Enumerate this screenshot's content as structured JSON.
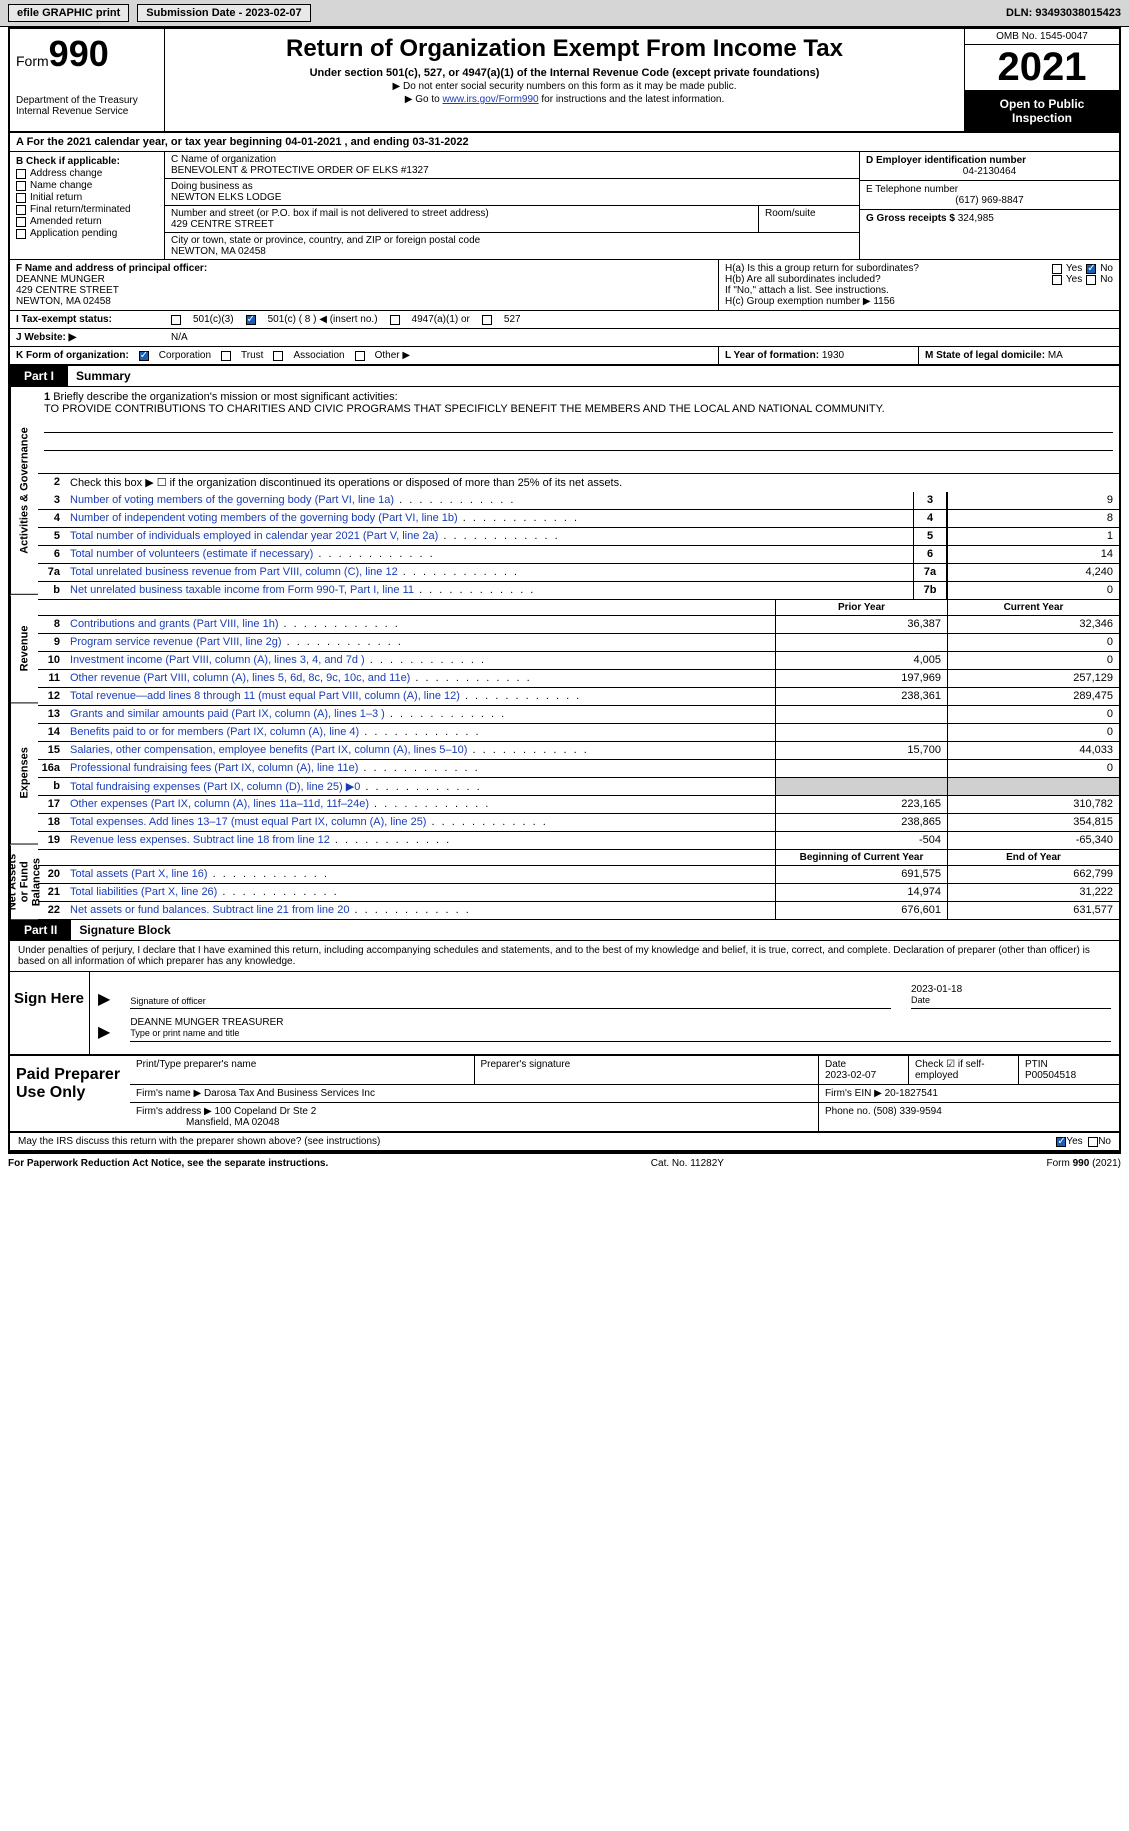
{
  "topbar": {
    "efile_label": "efile GRAPHIC print",
    "submission_date_label": "Submission Date - 2023-02-07",
    "dln_label": "DLN: 93493038015423"
  },
  "header": {
    "form_label": "Form",
    "form_number": "990",
    "dept": "Department of the Treasury\nInternal Revenue Service",
    "title": "Return of Organization Exempt From Income Tax",
    "subtitle1": "Under section 501(c), 527, or 4947(a)(1) of the Internal Revenue Code (except private foundations)",
    "subtitle2a": "▶ Do not enter social security numbers on this form as it may be made public.",
    "subtitle2b": "▶ Go to ",
    "irs_link": "www.irs.gov/Form990",
    "subtitle2c": " for instructions and the latest information.",
    "omb": "OMB No. 1545-0047",
    "tax_year": "2021",
    "open_public": "Open to Public Inspection"
  },
  "lineA": "A For the 2021 calendar year, or tax year beginning 04-01-2021   , and ending 03-31-2022",
  "blockB": {
    "label": "B Check if applicable:",
    "items": [
      "Address change",
      "Name change",
      "Initial return",
      "Final return/terminated",
      "Amended return",
      "Application pending"
    ]
  },
  "blockC": {
    "name_label": "C Name of organization",
    "org_name": "BENEVOLENT & PROTECTIVE ORDER OF ELKS #1327",
    "dba_label": "Doing business as",
    "dba_value": "NEWTON ELKS LODGE",
    "street_label": "Number and street (or P.O. box if mail is not delivered to street address)",
    "street_value": "429 CENTRE STREET",
    "room_label": "Room/suite",
    "city_label": "City or town, state or province, country, and ZIP or foreign postal code",
    "city_value": "NEWTON, MA  02458"
  },
  "blockD": {
    "ein_label": "D Employer identification number",
    "ein_value": "04-2130464",
    "phone_label": "E Telephone number",
    "phone_value": "(617) 969-8847",
    "gross_label": "G Gross receipts $",
    "gross_value": "324,985"
  },
  "blockF": {
    "label": "F Name and address of principal officer:",
    "name": "DEANNE MUNGER",
    "addr1": "429 CENTRE STREET",
    "addr2": "NEWTON, MA  02458"
  },
  "blockH": {
    "a_label": "H(a)  Is this a group return for subordinates?",
    "b_label": "H(b)  Are all subordinates included?",
    "b_note": "If \"No,\" attach a list. See instructions.",
    "c_label": "H(c)  Group exemption number ▶",
    "c_value": "1156",
    "yes": "Yes",
    "no": "No"
  },
  "lineI": {
    "label": "I   Tax-exempt status:",
    "opt1": "501(c)(3)",
    "opt2": "501(c) ( 8 ) ◀ (insert no.)",
    "opt3": "4947(a)(1) or",
    "opt4": "527"
  },
  "lineJ": {
    "label": "J   Website: ▶",
    "value": "N/A"
  },
  "lineK": {
    "label": "K Form of organization:",
    "corp": "Corporation",
    "trust": "Trust",
    "assoc": "Association",
    "other": "Other ▶"
  },
  "lineL": {
    "label": "L Year of formation:",
    "value": "1930"
  },
  "lineM": {
    "label": "M State of legal domicile:",
    "value": "MA"
  },
  "part1": {
    "part_label": "Part I",
    "title": "Summary",
    "line1_label": "1",
    "line1_desc": "Briefly describe the organization's mission or most significant activities:",
    "line1_text": "TO PROVIDE CONTRIBUTIONS TO CHARITIES AND CIVIC PROGRAMS THAT SPECIFICLY BENEFIT THE MEMBERS AND THE LOCAL AND NATIONAL COMMUNITY.",
    "line2_desc": "Check this box ▶ ☐  if the organization discontinued its operations or disposed of more than 25% of its net assets.",
    "vert_activities": "Activities & Governance",
    "vert_revenue": "Revenue",
    "vert_expenses": "Expenses",
    "vert_netassets": "Net Assets or Fund Balances",
    "hdr_prior": "Prior Year",
    "hdr_current": "Current Year",
    "hdr_begin": "Beginning of Current Year",
    "hdr_end": "End of Year",
    "lines_gov": [
      {
        "n": "3",
        "d": "Number of voting members of the governing body (Part VI, line 1a)",
        "box": "3",
        "v": "9"
      },
      {
        "n": "4",
        "d": "Number of independent voting members of the governing body (Part VI, line 1b)",
        "box": "4",
        "v": "8"
      },
      {
        "n": "5",
        "d": "Total number of individuals employed in calendar year 2021 (Part V, line 2a)",
        "box": "5",
        "v": "1"
      },
      {
        "n": "6",
        "d": "Total number of volunteers (estimate if necessary)",
        "box": "6",
        "v": "14"
      },
      {
        "n": "7a",
        "d": "Total unrelated business revenue from Part VIII, column (C), line 12",
        "box": "7a",
        "v": "4,240"
      },
      {
        "n": "b",
        "d": "Net unrelated business taxable income from Form 990-T, Part I, line 11",
        "box": "7b",
        "v": "0"
      }
    ],
    "lines_rev": [
      {
        "n": "8",
        "d": "Contributions and grants (Part VIII, line 1h)",
        "p": "36,387",
        "c": "32,346"
      },
      {
        "n": "9",
        "d": "Program service revenue (Part VIII, line 2g)",
        "p": "",
        "c": "0"
      },
      {
        "n": "10",
        "d": "Investment income (Part VIII, column (A), lines 3, 4, and 7d )",
        "p": "4,005",
        "c": "0"
      },
      {
        "n": "11",
        "d": "Other revenue (Part VIII, column (A), lines 5, 6d, 8c, 9c, 10c, and 11e)",
        "p": "197,969",
        "c": "257,129"
      },
      {
        "n": "12",
        "d": "Total revenue—add lines 8 through 11 (must equal Part VIII, column (A), line 12)",
        "p": "238,361",
        "c": "289,475"
      }
    ],
    "lines_exp": [
      {
        "n": "13",
        "d": "Grants and similar amounts paid (Part IX, column (A), lines 1–3 )",
        "p": "",
        "c": "0"
      },
      {
        "n": "14",
        "d": "Benefits paid to or for members (Part IX, column (A), line 4)",
        "p": "",
        "c": "0"
      },
      {
        "n": "15",
        "d": "Salaries, other compensation, employee benefits (Part IX, column (A), lines 5–10)",
        "p": "15,700",
        "c": "44,033"
      },
      {
        "n": "16a",
        "d": "Professional fundraising fees (Part IX, column (A), line 11e)",
        "p": "",
        "c": "0"
      },
      {
        "n": "b",
        "d": "Total fundraising expenses (Part IX, column (D), line 25) ▶0",
        "p": "GRAY",
        "c": "GRAY"
      },
      {
        "n": "17",
        "d": "Other expenses (Part IX, column (A), lines 11a–11d, 11f–24e)",
        "p": "223,165",
        "c": "310,782"
      },
      {
        "n": "18",
        "d": "Total expenses. Add lines 13–17 (must equal Part IX, column (A), line 25)",
        "p": "238,865",
        "c": "354,815"
      },
      {
        "n": "19",
        "d": "Revenue less expenses. Subtract line 18 from line 12",
        "p": "-504",
        "c": "-65,340"
      }
    ],
    "lines_net": [
      {
        "n": "20",
        "d": "Total assets (Part X, line 16)",
        "p": "691,575",
        "c": "662,799"
      },
      {
        "n": "21",
        "d": "Total liabilities (Part X, line 26)",
        "p": "14,974",
        "c": "31,222"
      },
      {
        "n": "22",
        "d": "Net assets or fund balances. Subtract line 21 from line 20",
        "p": "676,601",
        "c": "631,577"
      }
    ]
  },
  "part2": {
    "part_label": "Part II",
    "title": "Signature Block",
    "declaration": "Under penalties of perjury, I declare that I have examined this return, including accompanying schedules and statements, and to the best of my knowledge and belief, it is true, correct, and complete. Declaration of preparer (other than officer) is based on all information of which preparer has any knowledge.",
    "sign_here": "Sign Here",
    "sig_officer": "Signature of officer",
    "sig_date": "2023-01-18",
    "date_label": "Date",
    "name_title": "DEANNE MUNGER  TREASURER",
    "type_name": "Type or print name and title",
    "preparer_label": "Paid Preparer Use Only",
    "prep_name_label": "Print/Type preparer's name",
    "prep_sig_label": "Preparer's signature",
    "prep_date_label": "Date",
    "prep_date_val": "2023-02-07",
    "check_if": "Check ☑ if self-employed",
    "ptin_label": "PTIN",
    "ptin_val": "P00504518",
    "firm_name_label": "Firm's name   ▶",
    "firm_name": "Darosa Tax And Business Services Inc",
    "firm_ein_label": "Firm's EIN ▶",
    "firm_ein": "20-1827541",
    "firm_addr_label": "Firm's address ▶",
    "firm_addr1": "100 Copeland Dr Ste 2",
    "firm_addr2": "Mansfield, MA  02048",
    "firm_phone_label": "Phone no.",
    "firm_phone": "(508) 339-9594",
    "may_irs": "May the IRS discuss this return with the preparer shown above? (see instructions)"
  },
  "footer": {
    "paperwork": "For Paperwork Reduction Act Notice, see the separate instructions.",
    "cat": "Cat. No. 11282Y",
    "form": "Form 990 (2021)"
  }
}
